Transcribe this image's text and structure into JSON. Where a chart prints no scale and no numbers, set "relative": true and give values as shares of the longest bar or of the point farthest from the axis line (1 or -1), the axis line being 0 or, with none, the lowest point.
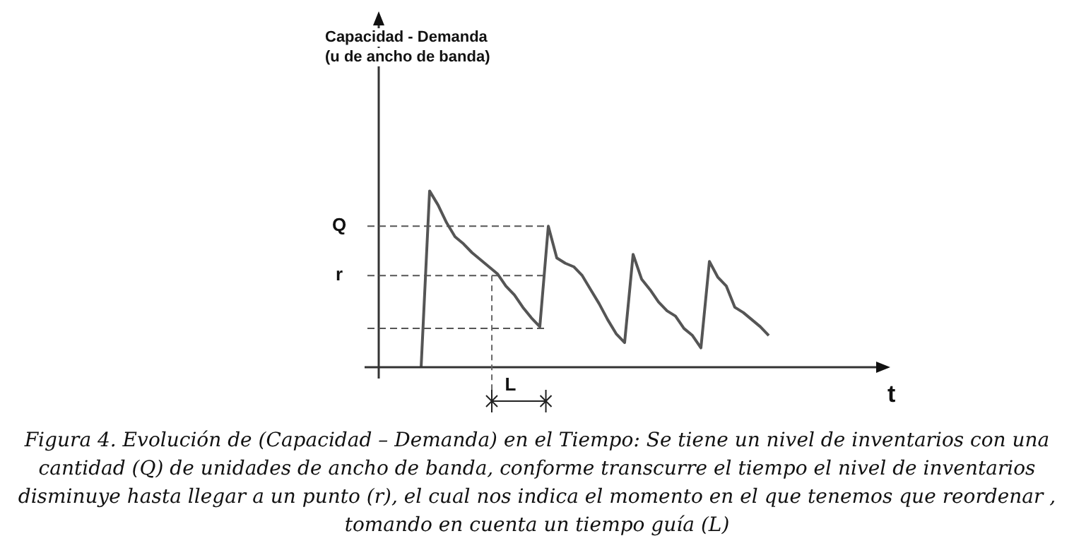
{
  "chart_data": {
    "type": "line",
    "relative": true,
    "xlabel": "t",
    "categories": [
      null,
      null,
      null,
      null,
      null,
      null,
      null,
      null,
      null,
      null,
      null,
      null,
      null,
      null,
      null,
      null,
      null,
      null,
      null,
      null,
      null,
      null,
      null,
      null,
      null,
      null,
      null,
      null,
      null,
      null,
      null,
      null,
      null,
      null,
      null,
      null,
      null,
      null,
      null,
      null,
      null,
      null,
      null,
      null,
      null,
      null,
      null,
      null,
      null,
      null,
      null,
      null,
      null,
      null,
      null,
      null,
      null,
      null,
      null
    ],
    "series": [
      {
        "color": "#555555",
        "values": [
          null,
          null,
          null,
          null,
          null,
          0,
          1,
          0.92,
          0.82,
          0.74,
          0.7,
          0.65,
          0.61,
          0.57,
          0.53,
          0.46,
          0.41,
          0.34,
          0.28,
          0.23,
          0.8,
          0.62,
          0.59,
          0.57,
          0.52,
          0.44,
          0.36,
          0.27,
          0.19,
          0.14,
          0.64,
          0.5,
          0.44,
          0.37,
          0.32,
          0.29,
          0.22,
          0.18,
          0.11,
          0.6,
          0.51,
          0.46,
          0.34,
          0.31,
          0.27,
          0.23,
          0.18,
          null,
          null,
          null,
          null,
          null,
          null,
          null,
          null,
          null,
          null,
          null,
          null
        ]
      }
    ],
    "ref_lines": [
      {
        "axis": "y",
        "value": 0.8,
        "label": "Q",
        "line_style": "dashed"
      },
      {
        "axis": "y",
        "value": 0.52,
        "label": "r",
        "line_style": "dashed"
      },
      {
        "axis": "y",
        "value": 0.22,
        "line_style": "dashed"
      }
    ],
    "annotations": [
      "L",
      "Capacidad - Demanda\n(u de ancho de banda)",
      "Figura 4.  Evolución de (Capacidad – Demanda) en el Tiempo: Se tiene un nivel de inventarios con una cantidad (Q) de unidades de ancho de banda, conforme transcurre el tiempo el nivel de inventarios disminuye hasta llegar a un punto (r), el cual nos indica el momento en el que tenemos que reordenar , tomando en cuenta un tiempo guía (L)"
    ],
    "legend": false,
    "grid": false,
    "marker": "none",
    "line_style": "solid"
  }
}
